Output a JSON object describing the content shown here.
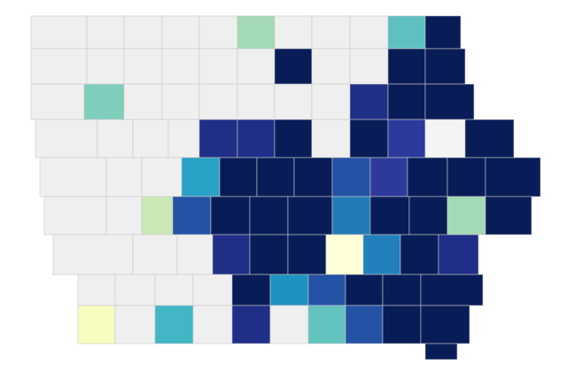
{
  "map": {
    "rows": [
      [
        "#efefef",
        "#efefef",
        "#efefef",
        "#efefef",
        "#efefef",
        "#a1dab4",
        "#efefef",
        "#efefef",
        "#efefef",
        "#5ec0c0",
        "#081d58"
      ],
      [
        "#efefef",
        "#efefef",
        "#efefef",
        "#efefef",
        "#efefef",
        "#efefef",
        "#081d58",
        "#efefef",
        "#efefef",
        "#081d58",
        "#081d58"
      ],
      [
        "#efefef",
        "#7fcdbb",
        "#efefef",
        "#efefef",
        "#efefef",
        "#efefef",
        "#efefef",
        "#efefef",
        "#1f2f88",
        "#081d58",
        "#081d58"
      ],
      [
        "#efefef",
        "#efefef",
        "#efefef",
        "#efefef",
        "#1f2f88",
        "#1f2f88",
        "#081d58",
        "#efefef",
        "#081d58",
        "#2b3a9c",
        "#f4f4f4",
        "#081d58"
      ],
      [
        "#efefef",
        "#efefef",
        "#efefef",
        "#2aa1c6",
        "#081d58",
        "#081d58",
        "#081d58",
        "#2452a5",
        "#2e3a9b",
        "#081d58",
        "#081d58",
        "#081d58"
      ],
      [
        "#efefef",
        "#efefef",
        "#cbe9b5",
        "#2452a5",
        "#081d58",
        "#081d58",
        "#081d58",
        "#227bb6",
        "#081d58",
        "#081d58",
        "#a1dab4",
        "#081d58"
      ],
      [
        "#efefef",
        "#efefef",
        "#efefef",
        "#1f2f88",
        "#081d58",
        "#081d58",
        "#ffffd9",
        "#2180bb",
        "#081d58",
        "#1f2f88"
      ],
      [
        "#efefef",
        "#efefef",
        "#efefef",
        "#efefef",
        "#081d58",
        "#1e93c2",
        "#2452a5",
        "#081d58",
        "#081d58",
        "#081d58"
      ],
      [
        "#f7fcc0",
        "#efefef",
        "#41b6c4",
        "#efefef",
        "#1f2f88",
        "#efefef",
        "#63c3bf",
        "#2452a5",
        "#081d58",
        "#081d58"
      ]
    ]
  }
}
